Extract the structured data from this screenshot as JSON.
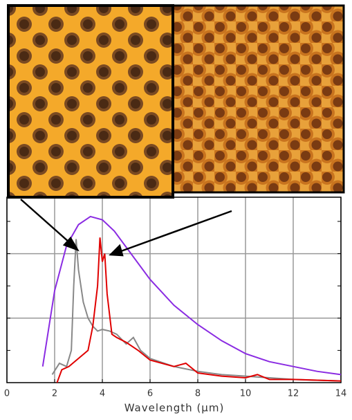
{
  "chart_data": {
    "type": "line",
    "x_label": "Wavelength (μm)",
    "xlim": [
      0,
      14
    ],
    "xticks": [
      0,
      2,
      4,
      6,
      8,
      10,
      12,
      14
    ],
    "ylim": [
      0,
      1.15
    ],
    "yticks": [
      0,
      0.2,
      0.4,
      0.6,
      0.8,
      1.0
    ],
    "grid": true,
    "series": [
      {
        "color": "#8a2be2",
        "x": [
          1.5,
          2.0,
          2.5,
          3.0,
          3.5,
          4.0,
          4.5,
          5,
          6,
          7,
          8,
          9,
          10,
          11,
          12,
          13,
          14
        ],
        "values": [
          0.1,
          0.57,
          0.85,
          0.98,
          1.03,
          1.01,
          0.94,
          0.84,
          0.64,
          0.48,
          0.36,
          0.26,
          0.18,
          0.13,
          0.1,
          0.07,
          0.05
        ]
      },
      {
        "color": "#888888",
        "x": [
          1.9,
          2.2,
          2.5,
          2.7,
          2.8,
          2.9,
          3.0,
          3.2,
          3.4,
          3.6,
          3.8,
          4.0,
          4.3,
          4.6,
          5.0,
          5.3,
          5.6,
          6,
          7,
          8,
          9,
          10,
          12,
          14
        ],
        "values": [
          0.05,
          0.12,
          0.1,
          0.2,
          0.6,
          0.89,
          0.7,
          0.5,
          0.4,
          0.35,
          0.32,
          0.33,
          0.32,
          0.3,
          0.24,
          0.28,
          0.2,
          0.15,
          0.1,
          0.07,
          0.05,
          0.04,
          0.02,
          0.01
        ]
      },
      {
        "color": "#e00000",
        "x": [
          2.1,
          2.3,
          2.6,
          3.0,
          3.4,
          3.6,
          3.8,
          3.9,
          4.0,
          4.1,
          4.2,
          4.4,
          4.6,
          5.0,
          5.5,
          6,
          6.5,
          7,
          7.5,
          8,
          9,
          10,
          10.5,
          11,
          12,
          14
        ],
        "values": [
          0.0,
          0.08,
          0.1,
          0.15,
          0.2,
          0.35,
          0.6,
          0.9,
          0.75,
          0.8,
          0.55,
          0.3,
          0.28,
          0.25,
          0.2,
          0.14,
          0.12,
          0.1,
          0.12,
          0.06,
          0.04,
          0.03,
          0.05,
          0.02,
          0.02,
          0.01
        ]
      }
    ]
  }
}
